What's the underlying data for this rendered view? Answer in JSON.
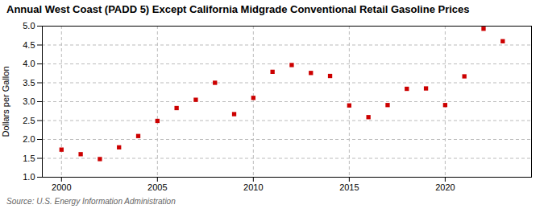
{
  "chart_data": {
    "type": "scatter",
    "title": "Annual West Coast (PADD 5) Except California Midgrade Conventional Retail Gasoline Prices",
    "ylabel": "Dollars per Gallon",
    "annotations": [
      "Source: U.S. Energy Information Administration"
    ],
    "x": [
      2000,
      2001,
      2002,
      2003,
      2004,
      2005,
      2006,
      2007,
      2008,
      2009,
      2010,
      2011,
      2012,
      2013,
      2014,
      2015,
      2016,
      2017,
      2018,
      2019,
      2020,
      2021,
      2022,
      2023
    ],
    "values": [
      1.73,
      1.61,
      1.48,
      1.79,
      2.09,
      2.49,
      2.83,
      3.05,
      3.5,
      2.67,
      3.1,
      3.79,
      3.97,
      3.76,
      3.68,
      2.9,
      2.59,
      2.91,
      3.34,
      3.35,
      2.91,
      3.67,
      4.93,
      4.6
    ],
    "color": "#cc0000",
    "marker": "square",
    "xlim": [
      1999,
      2024.5
    ],
    "xticks": [
      2000,
      2005,
      2010,
      2015,
      2020
    ],
    "ylim": [
      1.0,
      5.0
    ],
    "yticks": [
      {
        "value": 1,
        "label": "1.0"
      },
      1.5,
      {
        "value": 2,
        "label": "2.0"
      },
      2.5,
      {
        "value": 3,
        "label": "3.0"
      },
      3.5,
      {
        "value": 4,
        "label": "4.0"
      },
      4.5,
      {
        "value": 5,
        "label": "5.0"
      }
    ],
    "grid": true
  }
}
